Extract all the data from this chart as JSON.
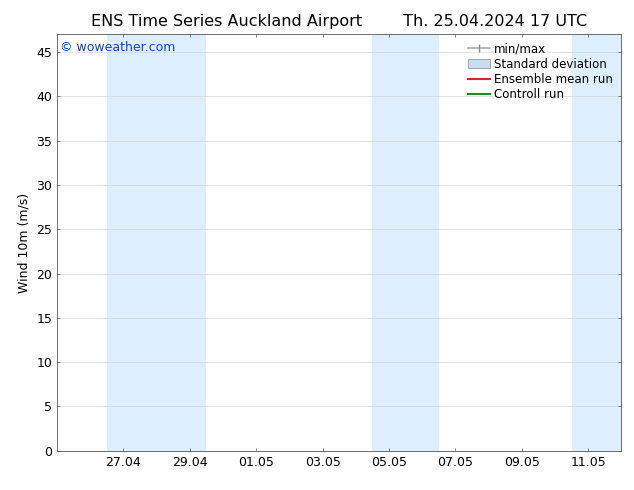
{
  "title_left": "ENS Time Series Auckland Airport",
  "title_right": "Th. 25.04.2024 17 UTC",
  "ylabel": "Wind 10m (m/s)",
  "watermark": "© woweather.com",
  "watermark_color": "#1144cc",
  "ylim": [
    0,
    47
  ],
  "yticks": [
    0,
    5,
    10,
    15,
    20,
    25,
    30,
    35,
    40,
    45
  ],
  "background_color": "#ffffff",
  "plot_bg_color": "#ffffff",
  "shaded_band_color": "#ddeeff",
  "x_min": 0.0,
  "x_max": 17.0,
  "x_tick_labels": [
    "27.04",
    "29.04",
    "01.05",
    "03.05",
    "05.05",
    "07.05",
    "09.05",
    "11.05"
  ],
  "x_tick_positions": [
    2,
    4,
    6,
    8,
    10,
    12,
    14,
    16
  ],
  "shaded_regions": [
    {
      "start": 1.5,
      "end": 4.5
    },
    {
      "start": 9.5,
      "end": 11.5
    },
    {
      "start": 15.5,
      "end": 17.0
    }
  ],
  "legend_labels": [
    "min/max",
    "Standard deviation",
    "Ensemble mean run",
    "Controll run"
  ],
  "font_size_title": 11.5,
  "font_size_legend": 8.5,
  "font_size_ticks": 9,
  "font_size_ylabel": 9,
  "font_size_watermark": 9
}
